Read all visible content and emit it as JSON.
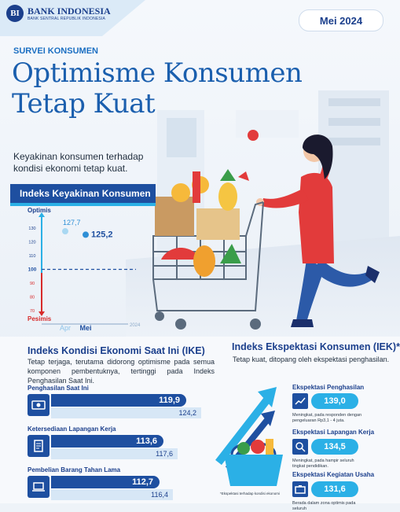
{
  "header": {
    "logo_mark": "BI",
    "bank_name": "BANK INDONESIA",
    "bank_subtitle": "BANK SENTRAL REPUBLIK INDONESIA",
    "period": "Mei 2024"
  },
  "hero": {
    "kicker": "SURVEI KONSUMEN",
    "title_line1": "Optimisme Konsumen",
    "title_line2": "Tetap Kuat",
    "lead": "Keyakinan konsumen terhadap kondisi ekonomi tetap kuat."
  },
  "ikk_chart": {
    "header": "Indeks Keyakinan Konsumen",
    "optimis_label": "Optimis",
    "pesimis_label": "Pesimis",
    "year_label": "2024",
    "chart_data": {
      "type": "scatter",
      "title": "Indeks Keyakinan Konsumen",
      "categories": [
        "Apr",
        "Mei"
      ],
      "values": [
        127.7,
        125.2
      ],
      "value_labels": [
        "127,7",
        "125,2"
      ],
      "y_ticks": [
        "130",
        "120",
        "110",
        "100",
        "90",
        "80",
        "70"
      ],
      "ylim": [
        70,
        130
      ],
      "threshold": 100,
      "threshold_label": "100",
      "colors": {
        "apr": "#a9d8f2",
        "mei": "#2e8fd6",
        "threshold": "#1e4fa0",
        "axis_up": "#2bb0e6",
        "axis_down": "#d72b2b"
      }
    }
  },
  "ike": {
    "title": "Indeks Kondisi Ekonomi Saat Ini (IKE)",
    "desc": "Tetap terjaga, terutama didorong optimisme pada semua komponen pembentuknya, tertinggi pada Indeks Penghasilan Saat Ini.",
    "items": [
      {
        "label": "Penghasilan Saat Ini",
        "value": "119,9",
        "prev": "124,2",
        "icon": "money-icon",
        "v": 119.9,
        "p": 124.2
      },
      {
        "label": "Ketersediaan Lapangan Kerja",
        "value": "113,6",
        "prev": "117,6",
        "icon": "job-document-icon",
        "v": 113.6,
        "p": 117.6
      },
      {
        "label": "Pembelian Barang Tahan Lama",
        "value": "112,7",
        "prev": "116,4",
        "icon": "laptop-icon",
        "v": 112.7,
        "p": 116.4
      }
    ]
  },
  "iek": {
    "title": "Indeks Ekspektasi Konsumen (IEK)*",
    "desc": "Tetap kuat, ditopang oleh ekspektasi penghasilan.",
    "items": [
      {
        "label": "Ekspektasi Penghasilan",
        "value": "139,0",
        "note": "Meningkat, pada responden dengan pengeluaran Rp3,1 - 4 juta.",
        "icon": "income-up-icon"
      },
      {
        "label": "Ekspektasi Lapangan Kerja",
        "value": "134,5",
        "note": "Meningkat, pada hampir seluruh tingkat pendidikan.",
        "icon": "job-search-icon"
      },
      {
        "label": "Ekspektasi Kegiatan Usaha",
        "value": "131,6",
        "note": "Berada dalam zona optimis pada seluruh",
        "icon": "business-icon"
      }
    ],
    "footnote": "*Ekspektasi terhadap kondisi ekonomi"
  }
}
